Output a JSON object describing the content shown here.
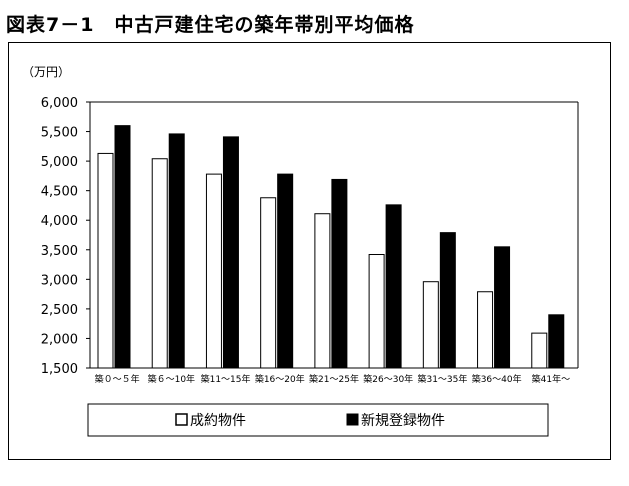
{
  "title": "図表7－1　中古戸建住宅の築年帯別平均価格",
  "chart_data": {
    "type": "bar",
    "unit_label": "（万円）",
    "categories": [
      "築０～５年",
      "築６～10年",
      "築11～15年",
      "築16～20年",
      "築21～25年",
      "築26～30年",
      "築31～35年",
      "築36～40年",
      "築41年～"
    ],
    "series": [
      {
        "name": "成約物件",
        "values": [
          5130,
          5040,
          4780,
          4380,
          4110,
          3420,
          2960,
          2790,
          2090
        ],
        "color": "#ffffff"
      },
      {
        "name": "新規登録物件",
        "values": [
          5600,
          5460,
          5410,
          4780,
          4690,
          4260,
          3790,
          3550,
          2400
        ],
        "color": "#000000"
      }
    ],
    "ylim": [
      1500,
      6000
    ],
    "yticks": [
      1500,
      2000,
      2500,
      3000,
      3500,
      4000,
      4500,
      5000,
      5500,
      6000
    ],
    "ytick_labels": [
      "1,500",
      "2,000",
      "2,500",
      "3,000",
      "3,500",
      "4,000",
      "4,500",
      "5,000",
      "5,500",
      "6,000"
    ],
    "grid": false,
    "legend_position": "bottom"
  }
}
